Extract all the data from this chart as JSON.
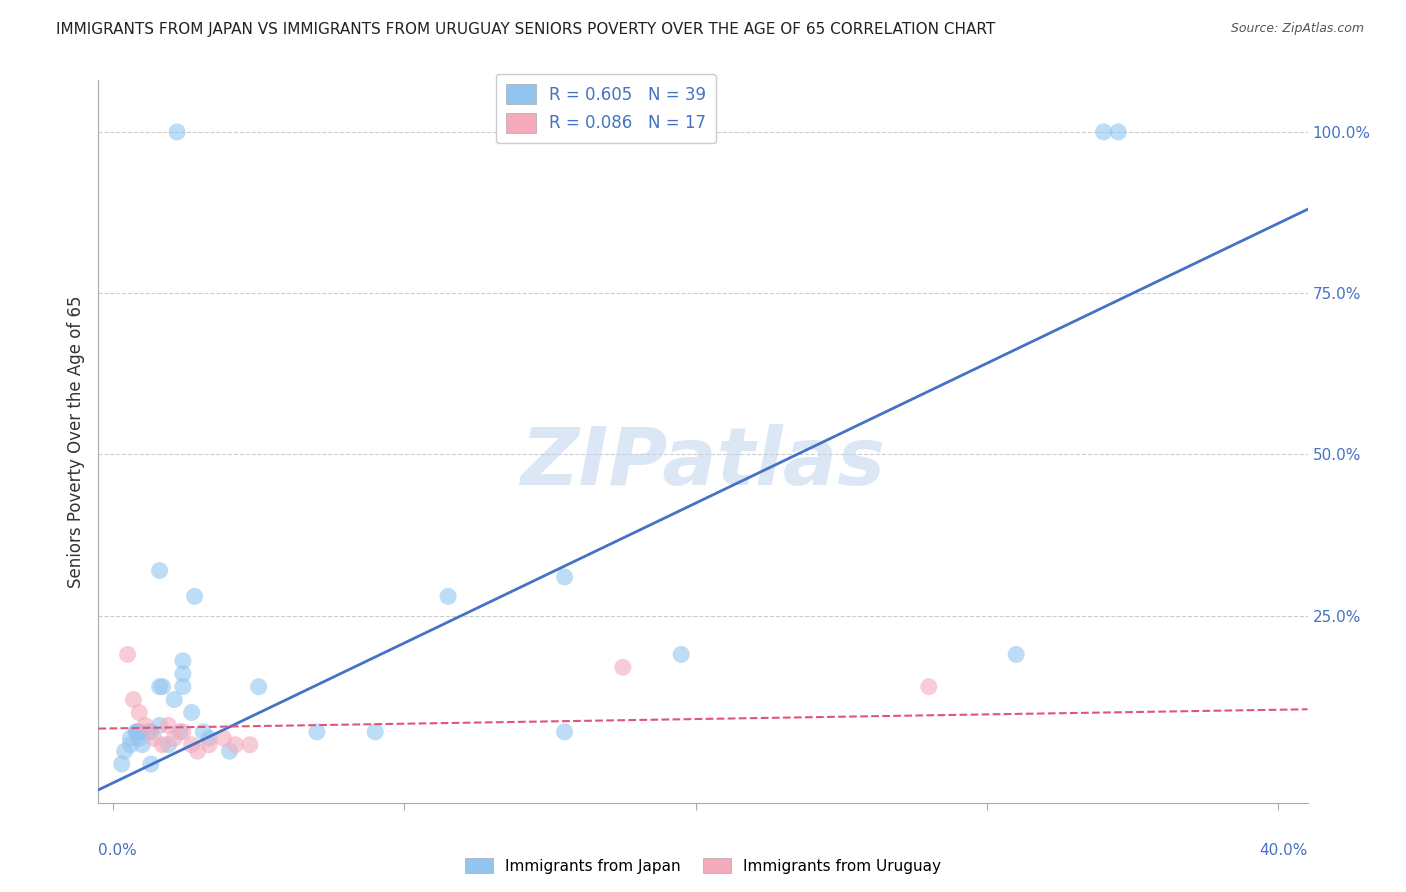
{
  "title": "IMMIGRANTS FROM JAPAN VS IMMIGRANTS FROM URUGUAY SENIORS POVERTY OVER THE AGE OF 65 CORRELATION CHART",
  "source": "Source: ZipAtlas.com",
  "ylabel": "Seniors Poverty Over the Age of 65",
  "y_tick_labels": [
    "100.0%",
    "75.0%",
    "50.0%",
    "25.0%"
  ],
  "x_tick_positions": [
    0.0,
    0.1,
    0.2,
    0.3,
    0.4
  ],
  "y_tick_positions": [
    1.0,
    0.75,
    0.5,
    0.25
  ],
  "xlim": [
    -0.005,
    0.41
  ],
  "ylim": [
    -0.04,
    1.08
  ],
  "japan_color": "#92C5F0",
  "uruguay_color": "#F4AABB",
  "japan_line_color": "#4472C4",
  "uruguay_line_color": "#E05575",
  "japan_R": 0.605,
  "japan_N": 39,
  "uruguay_R": 0.086,
  "uruguay_N": 17,
  "watermark": "ZIPatlas",
  "japan_x": [
    0.022,
    0.006,
    0.004,
    0.003,
    0.006,
    0.008,
    0.01,
    0.013,
    0.016,
    0.019,
    0.017,
    0.024,
    0.021,
    0.027,
    0.033,
    0.013,
    0.028,
    0.016,
    0.016,
    0.008,
    0.009,
    0.009,
    0.009,
    0.012,
    0.024,
    0.024,
    0.023,
    0.031,
    0.04,
    0.05,
    0.115,
    0.155,
    0.195,
    0.31,
    0.34,
    0.345,
    0.155,
    0.09,
    0.07
  ],
  "japan_y": [
    1.0,
    0.06,
    0.04,
    0.02,
    0.05,
    0.07,
    0.05,
    0.07,
    0.08,
    0.05,
    0.14,
    0.18,
    0.12,
    0.1,
    0.06,
    0.02,
    0.28,
    0.32,
    0.14,
    0.07,
    0.07,
    0.07,
    0.06,
    0.07,
    0.16,
    0.14,
    0.07,
    0.07,
    0.04,
    0.14,
    0.28,
    0.31,
    0.19,
    0.19,
    1.0,
    1.0,
    0.07,
    0.07,
    0.07
  ],
  "uruguay_x": [
    0.005,
    0.007,
    0.009,
    0.011,
    0.014,
    0.017,
    0.019,
    0.021,
    0.024,
    0.027,
    0.029,
    0.033,
    0.038,
    0.042,
    0.047,
    0.175,
    0.28
  ],
  "uruguay_y": [
    0.19,
    0.12,
    0.1,
    0.08,
    0.06,
    0.05,
    0.08,
    0.06,
    0.07,
    0.05,
    0.04,
    0.05,
    0.06,
    0.05,
    0.05,
    0.17,
    0.14
  ],
  "japan_line_x0": -0.005,
  "japan_line_x1": 0.41,
  "japan_line_y0": -0.02,
  "japan_line_y1": 0.88,
  "uruguay_line_x0": -0.005,
  "uruguay_line_x1": 0.41,
  "uruguay_line_y0": 0.075,
  "uruguay_line_y1": 0.105
}
